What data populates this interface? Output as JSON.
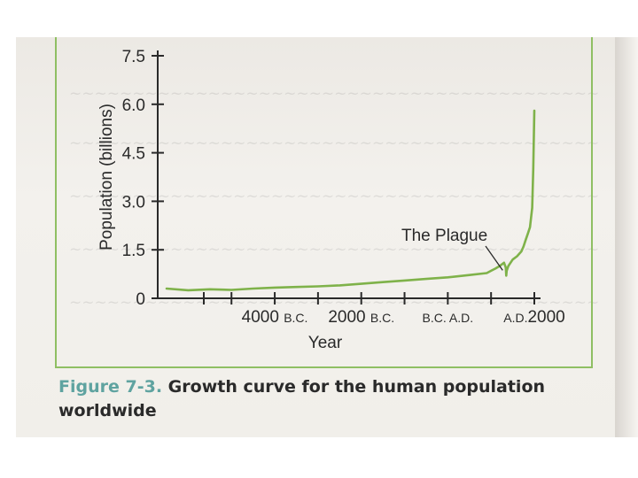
{
  "caption": {
    "figure_label": "Figure 7-3.",
    "text": "Growth curve for the human population worldwide"
  },
  "colors": {
    "curve": "#7fb24a",
    "frame": "#8fbf63",
    "caption_label": "#5fa3a0"
  },
  "chart_data": {
    "type": "line",
    "ylabel": "Population (billions)",
    "xlabel": "Year",
    "ylim": [
      0,
      7.5
    ],
    "xlim": [
      -6500,
      2000
    ],
    "y_ticks": [
      {
        "value": 0,
        "label": "0"
      },
      {
        "value": 1.5,
        "label": "1.5"
      },
      {
        "value": 3.0,
        "label": "3.0"
      },
      {
        "value": 4.5,
        "label": "4.5"
      },
      {
        "value": 6.0,
        "label": "6.0"
      },
      {
        "value": 7.5,
        "label": "7.5"
      }
    ],
    "x_ticks": [
      {
        "value": -4000,
        "label": "4000",
        "suffix": "B.C."
      },
      {
        "value": -2000,
        "label": "2000",
        "suffix": "B.C."
      },
      {
        "value": 0,
        "label": "B.C.",
        "suffix": "A.D."
      },
      {
        "value": 2000,
        "label": "2000",
        "prefix": "A.D."
      }
    ],
    "annotation": {
      "text": "The Plague",
      "x": 1350,
      "y": 0.7
    },
    "series": [
      {
        "x": [
          -6500,
          -6000,
          -5500,
          -5000,
          -4500,
          -4000,
          -3500,
          -3000,
          -2500,
          -2000,
          -1500,
          -1000,
          -500,
          0,
          500,
          900,
          1000,
          1100,
          1200,
          1300,
          1340,
          1350,
          1360,
          1400,
          1500,
          1600,
          1700,
          1750,
          1800,
          1850,
          1900,
          1950,
          1975,
          2000
        ],
        "y": [
          0.3,
          0.25,
          0.28,
          0.26,
          0.3,
          0.33,
          0.35,
          0.37,
          0.4,
          0.45,
          0.5,
          0.55,
          0.6,
          0.65,
          0.72,
          0.78,
          0.85,
          0.92,
          1.0,
          1.1,
          0.95,
          0.7,
          0.85,
          1.0,
          1.2,
          1.3,
          1.45,
          1.6,
          1.8,
          2.0,
          2.2,
          2.8,
          4.0,
          5.8
        ]
      }
    ]
  }
}
